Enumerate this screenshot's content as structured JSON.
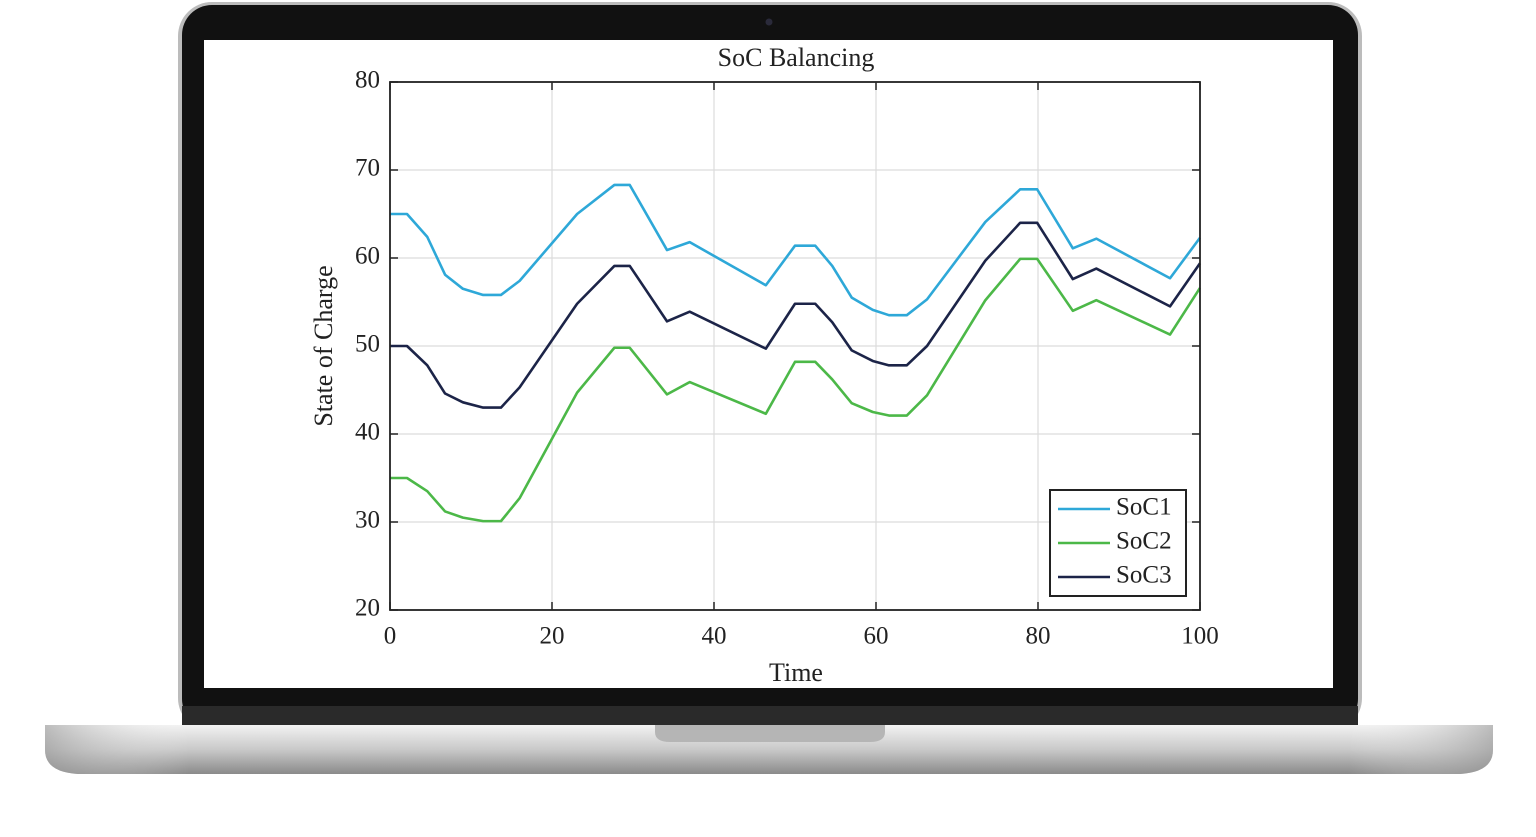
{
  "chart_data": {
    "type": "line",
    "title": "SoC Balancing",
    "xlabel": "Time",
    "ylabel": "State of Charge",
    "x": [
      0,
      2.1,
      4.6,
      6.8,
      9,
      11.5,
      13.7,
      16,
      23.1,
      27.7,
      29.6,
      34.2,
      37,
      46.4,
      50,
      52.5,
      54.6,
      57,
      59.6,
      61.6,
      63.8,
      66.3,
      73.5,
      77.8,
      79.9,
      84.3,
      87.2,
      96.3,
      100
    ],
    "series": [
      {
        "name": "SoC1",
        "color": "#2ea8d8",
        "values": [
          65,
          65,
          62.4,
          58.1,
          56.5,
          55.8,
          55.8,
          57.4,
          65,
          68.3,
          68.3,
          60.9,
          61.8,
          56.9,
          61.4,
          61.4,
          59.1,
          55.5,
          54.1,
          53.5,
          53.5,
          55.3,
          64.1,
          67.8,
          67.8,
          61.1,
          62.2,
          57.7,
          62.3
        ]
      },
      {
        "name": "SoC2",
        "color": "#4cb848",
        "values": [
          35,
          35,
          33.5,
          31.2,
          30.5,
          30.1,
          30.1,
          32.7,
          44.7,
          49.8,
          49.8,
          44.5,
          45.9,
          42.3,
          48.2,
          48.2,
          46.2,
          43.5,
          42.5,
          42.1,
          42.1,
          44.4,
          55.2,
          59.9,
          59.9,
          54,
          55.2,
          51.3,
          56.6
        ]
      },
      {
        "name": "SoC3",
        "color": "#1c2448",
        "values": [
          50,
          50,
          47.8,
          44.6,
          43.6,
          43,
          43,
          45.3,
          54.8,
          59.1,
          59.1,
          52.8,
          53.9,
          49.7,
          54.8,
          54.8,
          52.7,
          49.5,
          48.3,
          47.8,
          47.8,
          50,
          59.7,
          64,
          64,
          57.6,
          58.8,
          54.5,
          59.4
        ]
      }
    ],
    "xlim": [
      0,
      100
    ],
    "xticks": [
      0,
      20,
      40,
      60,
      80,
      100
    ],
    "ylim": [
      20,
      80
    ],
    "yticks": [
      20,
      30,
      40,
      50,
      60,
      70,
      80
    ],
    "grid": true,
    "legend": "lower-right"
  }
}
